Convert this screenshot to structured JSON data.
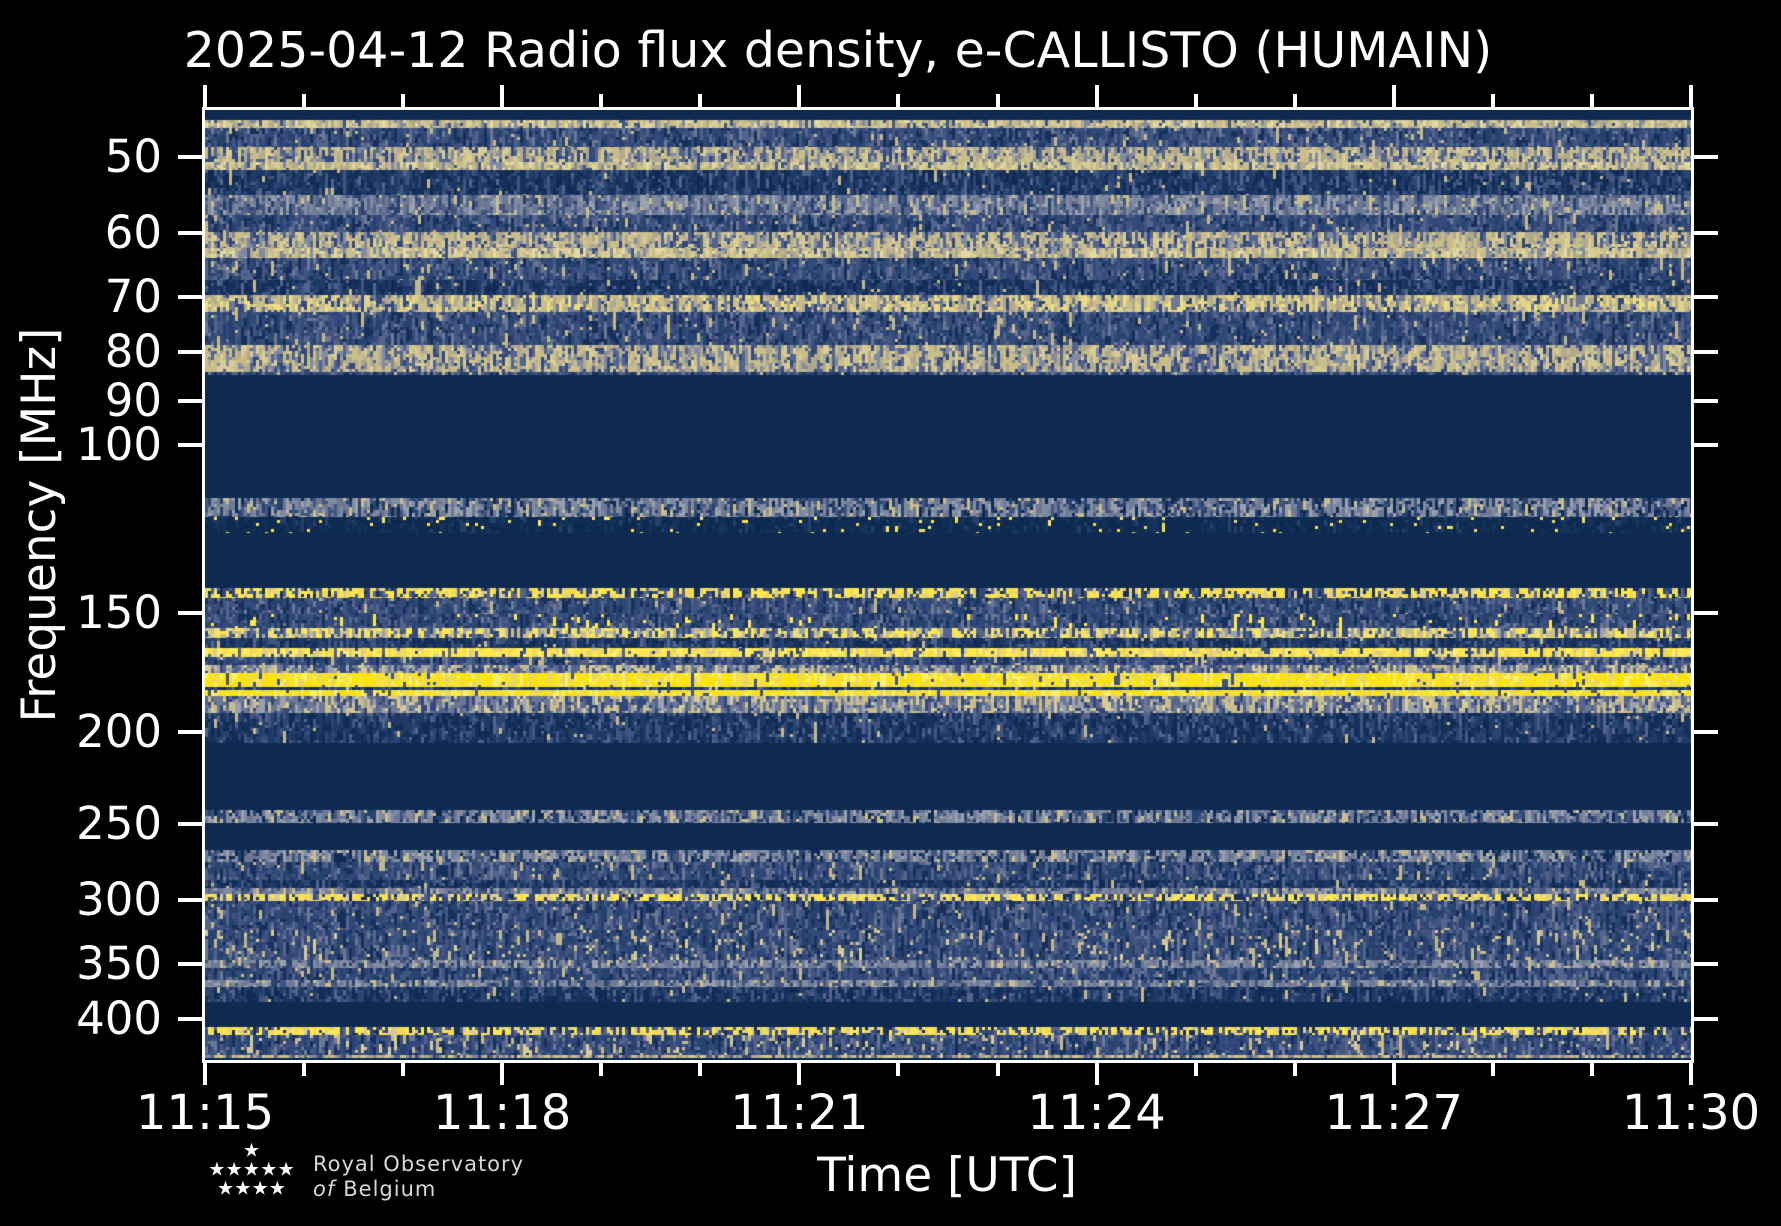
{
  "title": "2025-04-12 Radio flux density, e-CALLISTO (HUMAIN)",
  "axes": {
    "x_label": "Time [UTC]",
    "y_label": "Frequency [MHz]",
    "x_major_tick_labels": [
      "11:15",
      "11:18",
      "11:21",
      "11:24",
      "11:27",
      "11:30"
    ],
    "x_minor_tick_interval_minutes": 1,
    "x_total_minutes": 15,
    "y_major_ticks_mhz": [
      50,
      60,
      70,
      80,
      90,
      100,
      150,
      200,
      250,
      300,
      350,
      400
    ],
    "y_scale": "log-inverted",
    "x_range": [
      "11:15",
      "11:30"
    ]
  },
  "logo": {
    "line1": "Royal Observatory",
    "line2_italic": "of",
    "line2_rest": "Belgium",
    "star_rows": [
      1,
      5,
      4
    ]
  },
  "colors": {
    "background": "#000000",
    "frame": "#ffffff",
    "text": "#ffffff",
    "blank_band": "#0e2a51",
    "bright_rfi": "#ffe400"
  },
  "chart_data": {
    "type": "heatmap",
    "subtype": "radio-spectrogram",
    "title": "2025-04-12 Radio flux density, e-CALLISTO (HUMAIN)",
    "xlabel": "Time [UTC]",
    "ylabel": "Frequency [MHz]",
    "x_range": [
      "11:15",
      "11:30"
    ],
    "y_range_mhz": [
      44.6,
      441.6
    ],
    "y_scale": "log_inverted",
    "legend": "none",
    "blank_color": "#0e2a51",
    "palettes": {
      "blue_dark": [
        [
          "#0f2b53",
          2
        ],
        [
          "#17305b",
          3
        ],
        [
          "#1f3a66",
          3
        ],
        [
          "#2c4574",
          2
        ],
        [
          "#41557f",
          1.5
        ],
        [
          "#54648c",
          0.8
        ],
        [
          "#c3b88a",
          0.25
        ]
      ],
      "blue_med": [
        [
          "#17305b",
          2
        ],
        [
          "#27426f",
          3
        ],
        [
          "#34497b",
          3
        ],
        [
          "#41557f",
          2
        ],
        [
          "#54648c",
          1.5
        ],
        [
          "#6d7894",
          1
        ],
        [
          "#c3b88a",
          0.45
        ]
      ],
      "blue_med_tan": [
        [
          "#17305b",
          1.5
        ],
        [
          "#27426f",
          3
        ],
        [
          "#34497b",
          3
        ],
        [
          "#41557f",
          2
        ],
        [
          "#54648c",
          1.5
        ],
        [
          "#6d7894",
          1.2
        ],
        [
          "#c3b88a",
          0.9
        ],
        [
          "#d8cc96",
          0.4
        ]
      ],
      "blue_sparse_yellow": [
        [
          "#17305b",
          2
        ],
        [
          "#27426f",
          3
        ],
        [
          "#34497b",
          3
        ],
        [
          "#41557f",
          2
        ],
        [
          "#54648c",
          1.2
        ],
        [
          "#6d7894",
          0.8
        ],
        [
          "#ffe84d",
          0.5
        ]
      ],
      "slate_light": [
        [
          "#27426f",
          1
        ],
        [
          "#41557f",
          2
        ],
        [
          "#54648c",
          2
        ],
        [
          "#6d7894",
          3
        ],
        [
          "#808aa0",
          3
        ],
        [
          "#9aa0ad",
          2
        ],
        [
          "#c9bd8a",
          1
        ]
      ],
      "slate_speckle": [
        [
          "#0f2b53",
          1.5
        ],
        [
          "#27426f",
          2
        ],
        [
          "#41557f",
          2
        ],
        [
          "#6d7894",
          2.5
        ],
        [
          "#808aa0",
          3
        ],
        [
          "#9aa0ad",
          2
        ],
        [
          "#c9bd8a",
          1
        ]
      ],
      "slate_row": [
        [
          "#27426f",
          1.5
        ],
        [
          "#41557f",
          2
        ],
        [
          "#6d7894",
          3
        ],
        [
          "#808aa0",
          3
        ],
        [
          "#9aa0ad",
          1.5
        ],
        [
          "#c9bd8a",
          0.8
        ]
      ],
      "slate_tan": [
        [
          "#34497b",
          2
        ],
        [
          "#54648c",
          2
        ],
        [
          "#6d7894",
          2.5
        ],
        [
          "#9aa0ad",
          2
        ],
        [
          "#c9bd8a",
          2
        ],
        [
          "#d8cc96",
          1
        ]
      ],
      "tan_row": [
        [
          "#34497b",
          1.5
        ],
        [
          "#54648c",
          2
        ],
        [
          "#808aa0",
          2
        ],
        [
          "#b0a98e",
          2.5
        ],
        [
          "#c9bd8a",
          3
        ],
        [
          "#d8cc96",
          1.5
        ]
      ],
      "tan_bright": [
        [
          "#41557f",
          1
        ],
        [
          "#808aa0",
          2
        ],
        [
          "#b0a98e",
          2.5
        ],
        [
          "#c9bd8a",
          3
        ],
        [
          "#d8cc96",
          3
        ],
        [
          "#e4d9a2",
          1.5
        ]
      ],
      "tan_yellowish": [
        [
          "#34497b",
          1.5
        ],
        [
          "#6d7894",
          2
        ],
        [
          "#b0a98e",
          2
        ],
        [
          "#c9bd8a",
          3
        ],
        [
          "#e0d389",
          2
        ],
        [
          "#ecdf7d",
          1
        ]
      ],
      "tan_yellow_speckle": [
        [
          "#34497b",
          2
        ],
        [
          "#54648c",
          1.5
        ],
        [
          "#9aa0ad",
          1.5
        ],
        [
          "#c9bd8a",
          2.5
        ],
        [
          "#ecdf7d",
          2
        ],
        [
          "#ffe84d",
          1.5
        ]
      ],
      "yellow_speckle": [
        [
          "#17305b",
          1.5
        ],
        [
          "#34497b",
          2
        ],
        [
          "#54648c",
          1.5
        ],
        [
          "#d8cc96",
          1.5
        ],
        [
          "#f3da55",
          2.5
        ],
        [
          "#ffe84d",
          3
        ]
      ],
      "yellow_line": [
        [
          "#34497b",
          1
        ],
        [
          "#54648c",
          0.8
        ],
        [
          "#d8cc96",
          1.5
        ],
        [
          "#f3da55",
          3
        ],
        [
          "#ffe84d",
          4
        ],
        [
          "#ffef6a",
          2
        ]
      ],
      "yellow_line_bright": [
        [
          "#41557f",
          0.6
        ],
        [
          "#e8d85e",
          2
        ],
        [
          "#f6e23c",
          3.5
        ],
        [
          "#ffe400",
          4
        ],
        [
          "#fff06a",
          2
        ]
      ],
      "yellow_dots": [
        [
          "#0e2a51",
          10
        ],
        [
          "#15325c",
          3
        ],
        [
          "#25406b",
          1
        ],
        [
          "#f3da55",
          0.35
        ],
        [
          "#ffe84d",
          0.45
        ]
      ]
    },
    "bands": [
      {
        "f0": 44.6,
        "f1": 45.7,
        "style": "blank"
      },
      {
        "f0": 45.7,
        "f1": 46.6,
        "style": "tan_bright"
      },
      {
        "f0": 46.6,
        "f1": 48.8,
        "style": "blue_med"
      },
      {
        "f0": 48.8,
        "f1": 50.6,
        "style": "tan_row"
      },
      {
        "f0": 50.6,
        "f1": 51.6,
        "style": "tan_bright"
      },
      {
        "f0": 51.6,
        "f1": 54.8,
        "style": "blue_dark"
      },
      {
        "f0": 54.8,
        "f1": 57.5,
        "style": "slate_light"
      },
      {
        "f0": 57.5,
        "f1": 59.9,
        "style": "blue_med"
      },
      {
        "f0": 59.9,
        "f1": 62.2,
        "style": "tan_row"
      },
      {
        "f0": 62.2,
        "f1": 63.7,
        "style": "tan_bright"
      },
      {
        "f0": 63.7,
        "f1": 67.2,
        "style": "blue_med"
      },
      {
        "f0": 67.2,
        "f1": 69.7,
        "style": "blue_dark"
      },
      {
        "f0": 69.7,
        "f1": 72.6,
        "style": "tan_yellowish"
      },
      {
        "f0": 72.6,
        "f1": 78.6,
        "style": "blue_med"
      },
      {
        "f0": 78.6,
        "f1": 83.9,
        "style": "tan_row"
      },
      {
        "f0": 83.9,
        "f1": 84.5,
        "style": "blue_med"
      },
      {
        "f0": 84.5,
        "f1": 113.8,
        "style": "blank"
      },
      {
        "f0": 113.8,
        "f1": 119.1,
        "style": "slate_speckle"
      },
      {
        "f0": 119.1,
        "f1": 123.8,
        "style": "yellow_dots"
      },
      {
        "f0": 123.8,
        "f1": 141.4,
        "style": "blank"
      },
      {
        "f0": 141.4,
        "f1": 144.8,
        "style": "yellow_speckle"
      },
      {
        "f0": 144.8,
        "f1": 150.5,
        "style": "blue_med"
      },
      {
        "f0": 150.5,
        "f1": 155.7,
        "style": "blue_sparse_yellow"
      },
      {
        "f0": 155.7,
        "f1": 159.5,
        "style": "tan_yellow_speckle"
      },
      {
        "f0": 159.5,
        "f1": 163.4,
        "style": "blue_dark"
      },
      {
        "f0": 163.4,
        "f1": 167.0,
        "style": "yellow_line"
      },
      {
        "f0": 167.0,
        "f1": 170.3,
        "style": "blue_med"
      },
      {
        "f0": 170.3,
        "f1": 173.6,
        "style": "slate_tan"
      },
      {
        "f0": 173.6,
        "f1": 179.6,
        "style": "yellow_line_bright"
      },
      {
        "f0": 179.6,
        "f1": 180.9,
        "style": "blue_dark"
      },
      {
        "f0": 180.9,
        "f1": 183.5,
        "style": "yellow_line_bright"
      },
      {
        "f0": 183.5,
        "f1": 191.2,
        "style": "slate_tan"
      },
      {
        "f0": 191.2,
        "f1": 205.5,
        "style": "blue_dark"
      },
      {
        "f0": 205.5,
        "f1": 241.6,
        "style": "blank"
      },
      {
        "f0": 241.6,
        "f1": 249.3,
        "style": "slate_speckle"
      },
      {
        "f0": 249.3,
        "f1": 266.1,
        "style": "blank"
      },
      {
        "f0": 266.1,
        "f1": 273.9,
        "style": "slate_speckle"
      },
      {
        "f0": 273.9,
        "f1": 286.0,
        "style": "blue_med"
      },
      {
        "f0": 286.0,
        "f1": 291.6,
        "style": "blue_dark"
      },
      {
        "f0": 291.6,
        "f1": 295.9,
        "style": "slate_light"
      },
      {
        "f0": 295.9,
        "f1": 300.9,
        "style": "yellow_speckle"
      },
      {
        "f0": 300.9,
        "f1": 322.6,
        "style": "blue_med"
      },
      {
        "f0": 322.6,
        "f1": 346.9,
        "style": "blue_med_tan"
      },
      {
        "f0": 346.9,
        "f1": 353.7,
        "style": "slate_row"
      },
      {
        "f0": 353.7,
        "f1": 364.1,
        "style": "blue_med"
      },
      {
        "f0": 364.1,
        "f1": 370.3,
        "style": "slate_row"
      },
      {
        "f0": 370.3,
        "f1": 383.9,
        "style": "blue_dark"
      },
      {
        "f0": 383.9,
        "f1": 407.8,
        "style": "blank"
      },
      {
        "f0": 407.8,
        "f1": 415.8,
        "style": "yellow_speckle"
      },
      {
        "f0": 415.8,
        "f1": 436.3,
        "style": "blue_med_tan"
      },
      {
        "f0": 436.3,
        "f1": 439.5,
        "style": "tan_row"
      },
      {
        "f0": 439.5,
        "f1": 441.6,
        "style": "blank"
      }
    ]
  }
}
